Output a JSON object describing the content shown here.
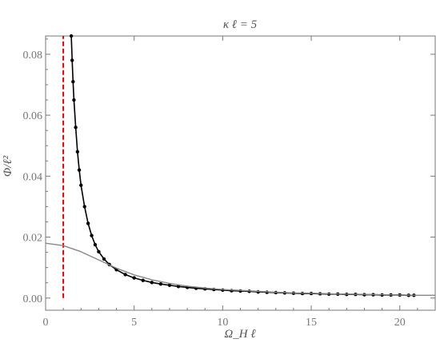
{
  "chart_data": {
    "type": "line",
    "title": "κ ℓ = 5",
    "xlabel": "Ω_H ℓ",
    "ylabel": "Φ/ℓ²",
    "xlim": [
      0,
      22
    ],
    "ylim": [
      -0.004,
      0.086
    ],
    "x_ticks": [
      0,
      5,
      10,
      15,
      20
    ],
    "y_ticks": [
      0.0,
      0.02,
      0.04,
      0.06,
      0.08
    ],
    "x_tick_labels": [
      "0",
      "5",
      "10",
      "15",
      "20"
    ],
    "y_tick_labels": [
      "0.00",
      "0.02",
      "0.04",
      "0.06",
      "0.08"
    ],
    "vertical_line": {
      "x": 1,
      "color": "#dd0000",
      "style": "dashed"
    },
    "series": [
      {
        "style": "line-with-points",
        "color": "#000000",
        "x": [
          1.45,
          1.5,
          1.55,
          1.6,
          1.7,
          1.8,
          1.9,
          2.0,
          2.2,
          2.4,
          2.6,
          2.8,
          3.0,
          3.3,
          3.6,
          4.0,
          4.5,
          5.0,
          5.5,
          6.0,
          6.5,
          7.0,
          7.5,
          8.0,
          8.5,
          9.0,
          9.5,
          10.0,
          10.5,
          11.0,
          11.5,
          12.0,
          12.5,
          13.0,
          13.5,
          14.0,
          14.5,
          15.0,
          15.5,
          16.0,
          16.5,
          17.0,
          17.5,
          18.0,
          18.5,
          19.0,
          19.5,
          20.0,
          20.5,
          20.8
        ],
        "y": [
          0.086,
          0.078,
          0.071,
          0.065,
          0.056,
          0.048,
          0.042,
          0.037,
          0.03,
          0.0245,
          0.0205,
          0.0175,
          0.0152,
          0.0128,
          0.011,
          0.0093,
          0.0077,
          0.0066,
          0.0058,
          0.0051,
          0.0046,
          0.0042,
          0.0038,
          0.0035,
          0.0032,
          0.003,
          0.0028,
          0.0026,
          0.0024,
          0.0023,
          0.0022,
          0.002,
          0.0019,
          0.0018,
          0.0017,
          0.0016,
          0.0015,
          0.0015,
          0.0014,
          0.0013,
          0.0013,
          0.0012,
          0.0012,
          0.0011,
          0.0011,
          0.001,
          0.001,
          0.001,
          0.0009,
          0.0009
        ]
      },
      {
        "style": "line",
        "color": "#888888",
        "x": [
          0,
          1,
          2,
          3,
          4,
          5,
          6,
          7,
          8,
          9,
          10,
          11,
          12,
          13,
          14,
          15,
          16,
          17,
          18,
          19,
          20,
          21,
          22
        ],
        "y": [
          0.018,
          0.0172,
          0.0152,
          0.0125,
          0.0098,
          0.0076,
          0.006,
          0.0048,
          0.0039,
          0.0033,
          0.0028,
          0.0025,
          0.0022,
          0.0019,
          0.0017,
          0.0016,
          0.0014,
          0.0013,
          0.0012,
          0.0011,
          0.001,
          0.0009,
          0.0009
        ]
      }
    ],
    "colors": {
      "frame": "#777777",
      "primary": "#000000",
      "secondary": "#888888",
      "marker": "#dd0000"
    }
  }
}
